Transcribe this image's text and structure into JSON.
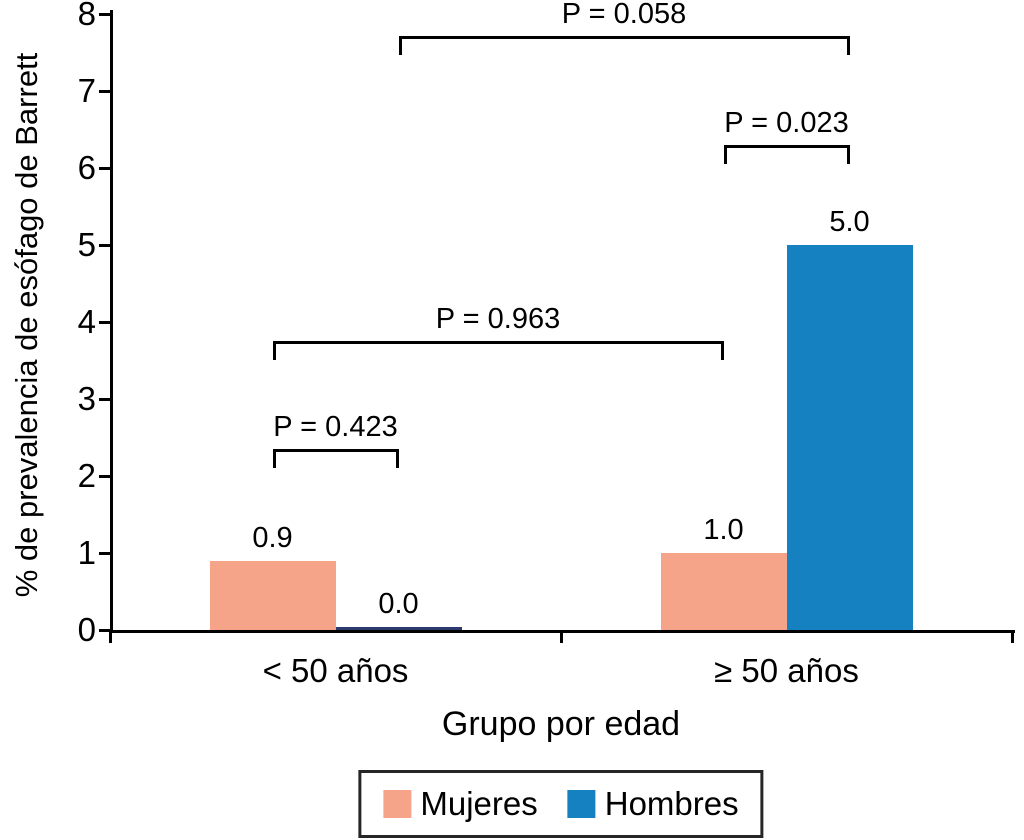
{
  "chart_data": {
    "type": "bar",
    "title": "",
    "xlabel": "Grupo por edad",
    "ylabel": "% de prevalencia de esófago de Barrett",
    "ylim": [
      0,
      8
    ],
    "yticks": [
      0,
      1,
      2,
      3,
      4,
      5,
      6,
      7,
      8
    ],
    "grid": false,
    "legend_position": "bottom",
    "categories": [
      "< 50 años",
      "≥ 50 años"
    ],
    "series": [
      {
        "name": "Mujeres",
        "color": "#F6A489",
        "values": [
          0.9,
          1.0
        ],
        "labels": [
          "0.9",
          "1.0"
        ]
      },
      {
        "name": "Hombres",
        "color": "#1581C1",
        "values": [
          0.0,
          5.0
        ],
        "labels": [
          "0.0",
          "5.0"
        ]
      }
    ],
    "zero_bar_color": "#2C3A6E",
    "annotations": [
      {
        "label": "P = 0.423",
        "x1": {
          "cat": 0,
          "series": 0
        },
        "x2": {
          "cat": 0,
          "series": 1
        },
        "y": 2.35
      },
      {
        "label": "P = 0.963",
        "x1": {
          "cat": 0,
          "series": 0
        },
        "x2": {
          "cat": 1,
          "series": 0
        },
        "y": 3.75
      },
      {
        "label": "P = 0.023",
        "x1": {
          "cat": 1,
          "series": 0
        },
        "x2": {
          "cat": 1,
          "series": 1
        },
        "y": 6.3
      },
      {
        "label": "P = 0.058",
        "x1": {
          "cat": 0,
          "series": 1
        },
        "x2": {
          "cat": 1,
          "series": 1
        },
        "y": 7.72
      }
    ]
  }
}
